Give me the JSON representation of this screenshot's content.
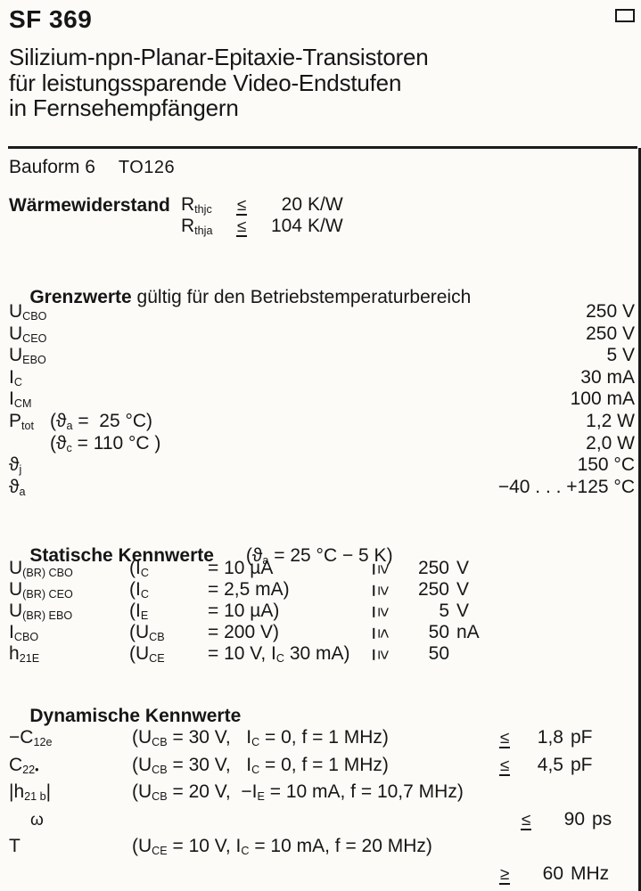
{
  "header": {
    "title": "SF 369",
    "subtitle_lines": [
      "Silizium-npn-Planar-Epitaxie-Transistoren",
      "für leistungssparende Video-Endstufen",
      "in Fernsehempfängern"
    ],
    "bauform_label": "Bauform 6",
    "package": "TO126"
  },
  "thermal": {
    "label": "Wärmewiderstand",
    "rows": [
      {
        "symbol": "R_{thjc}",
        "relation": "≤",
        "value_num": "20",
        "value_unit": "K/W"
      },
      {
        "symbol": "R_{thja}",
        "relation": "≤",
        "value_num": "104",
        "value_unit": "K/W"
      }
    ]
  },
  "limits": {
    "heading_bold": "Grenzwerte",
    "heading_rest": " gültig für den Betriebstemperaturbereich",
    "rows": [
      {
        "symbol": "U_{CBO}",
        "condition": "",
        "value": "250 V"
      },
      {
        "symbol": "U_{CEO}",
        "condition": "",
        "value": "250 V"
      },
      {
        "symbol": "U_{EBO}",
        "condition": "",
        "value": "5 V"
      },
      {
        "symbol": "I_{C}",
        "condition": "",
        "value": "30 mA"
      },
      {
        "symbol": "I_{CM}",
        "condition": "",
        "value": "100 mA"
      },
      {
        "symbol": "P_{tot}",
        "condition": "(ϑ_{a} =  25 °C)",
        "value": "1,2 W"
      },
      {
        "symbol": "",
        "condition": "(ϑ_{c} = 110 °C )",
        "value": "2,0 W"
      },
      {
        "symbol": "ϑ_{j}",
        "condition": "",
        "value": "150 °C"
      },
      {
        "symbol": "ϑ_{a}",
        "condition": "",
        "value": "−40 . . . +125 °C"
      }
    ]
  },
  "static": {
    "heading": "Statische Kennwerte",
    "heading_condition": "(ϑ_{a} = 25 °C − 5 K)",
    "rows": [
      {
        "symbol": "U_{(BR) CBO}",
        "cond_var": "(I_{C}",
        "cond_val": "= 10 µA",
        "relation": "≥",
        "value_num": "250",
        "value_unit": "V"
      },
      {
        "symbol": "U_{(BR) CEO}",
        "cond_var": "(I_{C}",
        "cond_val": "= 2,5 mA)",
        "relation": "≥",
        "value_num": "250",
        "value_unit": "V"
      },
      {
        "symbol": "U_{(BR) EBO}",
        "cond_var": "(I_{E}",
        "cond_val": "= 10 µA)",
        "relation": "≥",
        "value_num": "5",
        "value_unit": "V"
      },
      {
        "symbol": "I_{CBO}",
        "cond_var": "(U_{CB}",
        "cond_val": "= 200 V)",
        "relation": "≤",
        "value_num": "50",
        "value_unit": "nA"
      },
      {
        "symbol": "h_{21E}",
        "cond_var": "(U_{CE}",
        "cond_val": "= 10 V, I_{C} 30 mA)",
        "relation": "≥",
        "value_num": "50",
        "value_unit": ""
      }
    ]
  },
  "dynamic": {
    "heading": "Dynamische Kennwerte",
    "rows": [
      {
        "symbol": "−C_{12e}",
        "condition": "(U_{CB} = 30 V,   I_{C} = 0, f = 1 MHz)",
        "relation": "≤",
        "value_num": "1,8",
        "value_unit": "pF"
      },
      {
        "symbol": "C_{22•}",
        "condition": "(U_{CB} = 30 V,   I_{C} = 0, f = 1 MHz)",
        "relation": "≤",
        "value_num": "4,5",
        "value_unit": "pF"
      },
      {
        "symbol": "|h_{21 b}|",
        "condition": "(U_{CB} = 20 V,  −I_{E} = 10 mA, f = 10,7 MHz)",
        "relation": "",
        "value_num": "",
        "value_unit": ""
      },
      {
        "symbol": "ω",
        "condition": "",
        "relation": "≤",
        "value_num": "90",
        "value_unit": "ps"
      },
      {
        "symbol": "T",
        "condition": "(U_{CE} = 10 V, I_{C} = 10 mA, f = 20 MHz)",
        "relation": "",
        "value_num": "",
        "value_unit": ""
      },
      {
        "symbol": "",
        "condition": "",
        "relation": "≥",
        "value_num": "60",
        "value_unit": "MHz"
      }
    ]
  }
}
